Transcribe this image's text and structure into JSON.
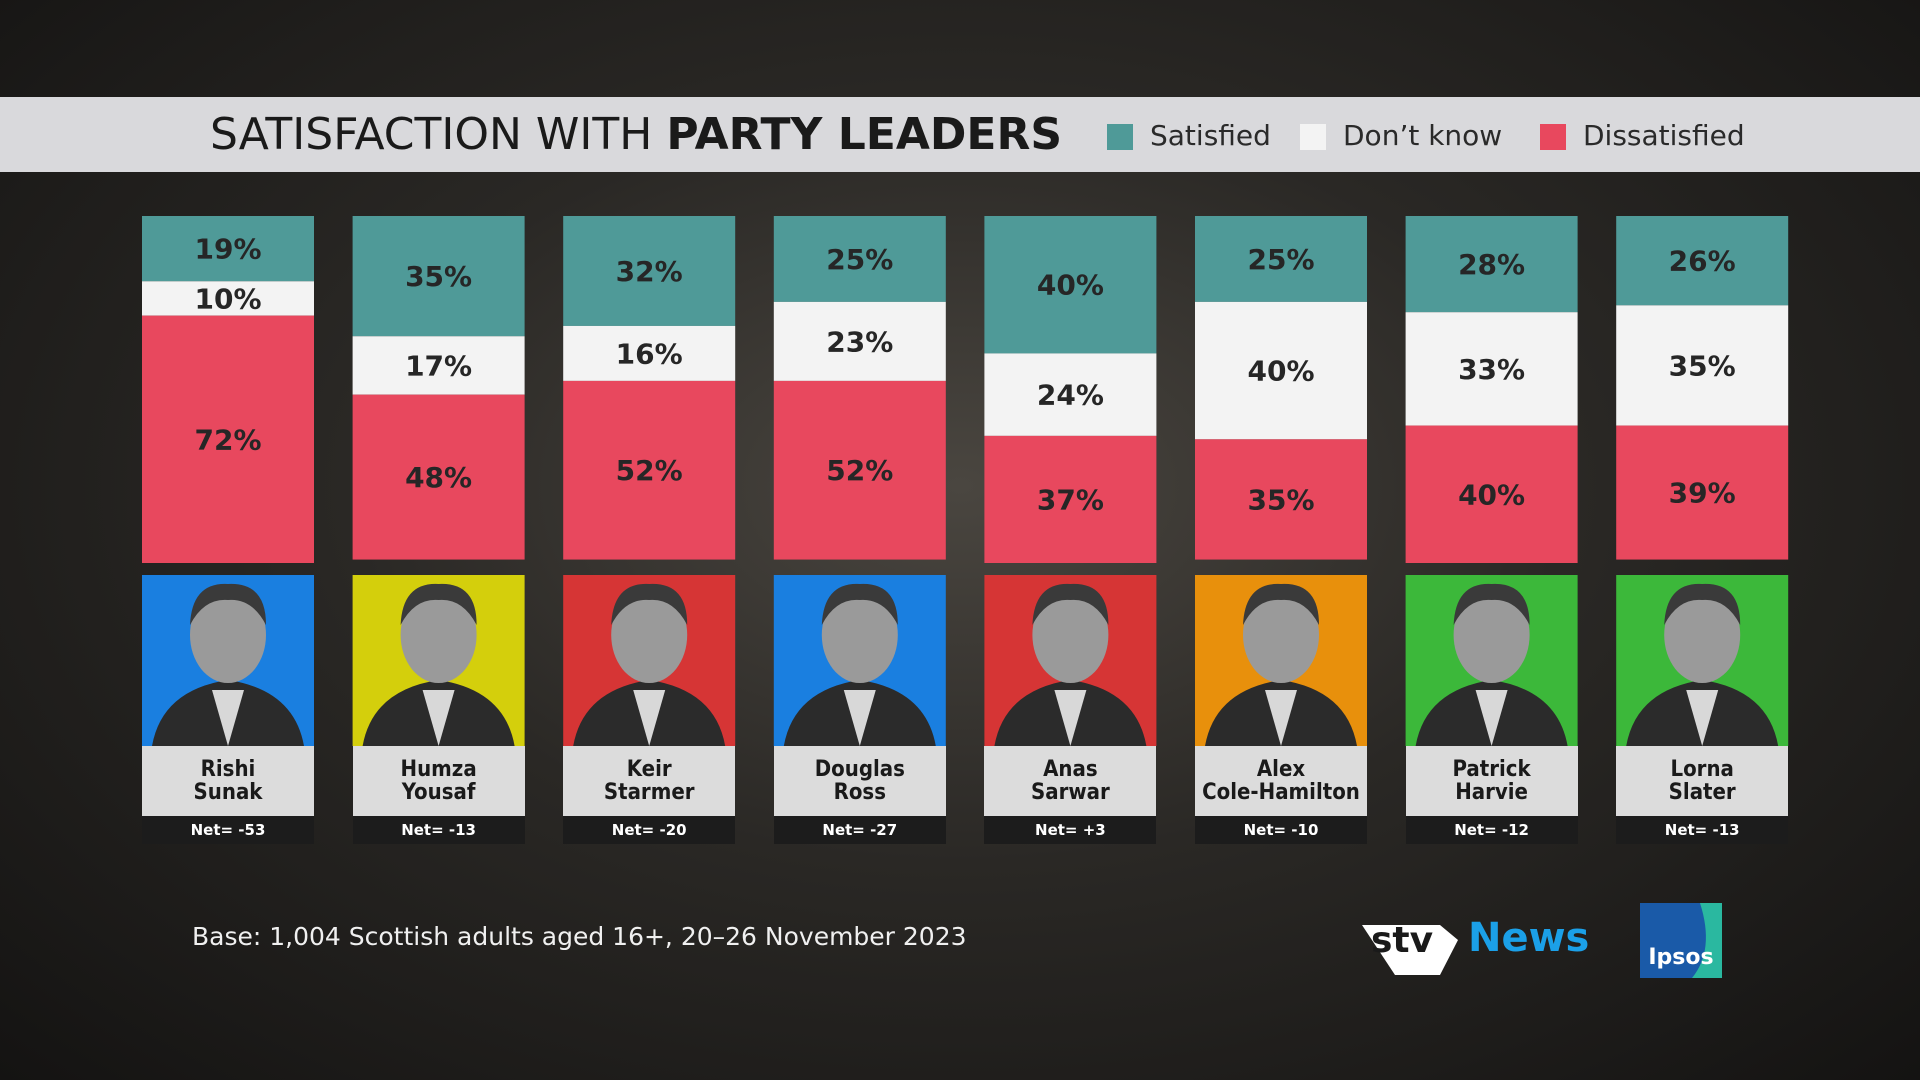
{
  "chart_data": {
    "type": "stacked-bar",
    "title": [
      "SATISFACTION WITH",
      "PARTY LEADERS"
    ],
    "categories": [
      "Rishi\nSunak",
      "Humza\nYousaf",
      "Keir\nStarmer",
      "Douglas\nRoss",
      "Anas\nSarwar",
      "Alex\nCole-Hamilton",
      "Patrick\nHarvie",
      "Lorna\nSlater"
    ],
    "photo_colors": [
      "#1a7fe0",
      "#d4cf0c",
      "#d63535",
      "#1a7fe0",
      "#d63535",
      "#e8900c",
      "#3cb83a",
      "#3cb83a"
    ],
    "series": [
      {
        "name": "Satisfied",
        "color": "#4f9a98",
        "values": [
          19,
          35,
          32,
          25,
          40,
          25,
          28,
          26
        ],
        "value_labels": [
          "19%",
          "35%",
          "32%",
          "25%",
          "40%",
          "25%",
          "28%",
          "26%"
        ]
      },
      {
        "name": "Don’t know",
        "color": "#f3f3f3",
        "values": [
          10,
          17,
          16,
          23,
          24,
          40,
          33,
          35
        ],
        "value_labels": [
          "10%",
          "17%",
          "16%",
          "23%",
          "24%",
          "40%",
          "33%",
          "35%"
        ]
      },
      {
        "name": "Dissatisfied",
        "color": "#e8485e",
        "values": [
          72,
          48,
          52,
          52,
          37,
          35,
          40,
          39
        ],
        "value_labels": [
          "72%",
          "48%",
          "52%",
          "52%",
          "37%",
          "35%",
          "40%",
          "39%"
        ]
      }
    ],
    "ylim": [
      0,
      101
    ],
    "net": {
      "values": [
        -53,
        -13,
        -20,
        -27,
        3,
        -10,
        -12,
        -13
      ],
      "value_labels": [
        "Net= -53",
        "Net= -13",
        "Net= -20",
        "Net= -27",
        "Net= +3",
        "Net= -10",
        "Net= -12",
        "Net= -13"
      ]
    },
    "footnote": "Base: 1,004 Scottish adults aged 16+, 20–26 November 2023",
    "logos": {
      "stv": "stv",
      "news": "News",
      "ipsos": "Ipsos"
    }
  }
}
